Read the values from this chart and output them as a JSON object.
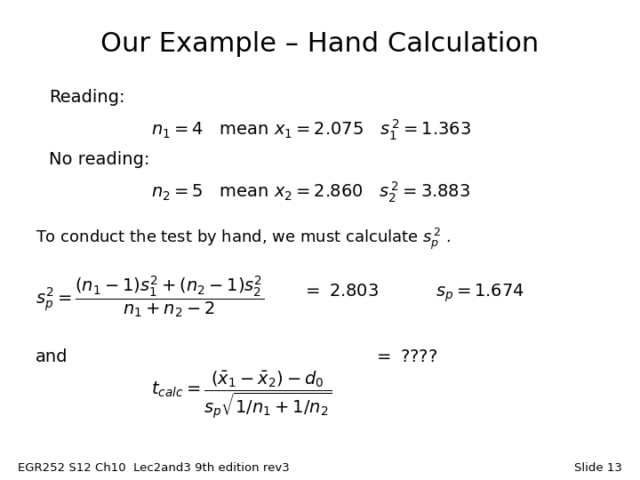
{
  "title": "Our Example – Hand Calculation",
  "bg_color": "#ffffff",
  "text_color": "#000000",
  "title_fontsize": 22,
  "body_fontsize": 14,
  "formula_fontsize": 13,
  "small_fontsize": 9.5,
  "footer_left": "EGR252 S12 Ch10  Lec2and3 9th edition rev3",
  "footer_right": "Slide 13"
}
